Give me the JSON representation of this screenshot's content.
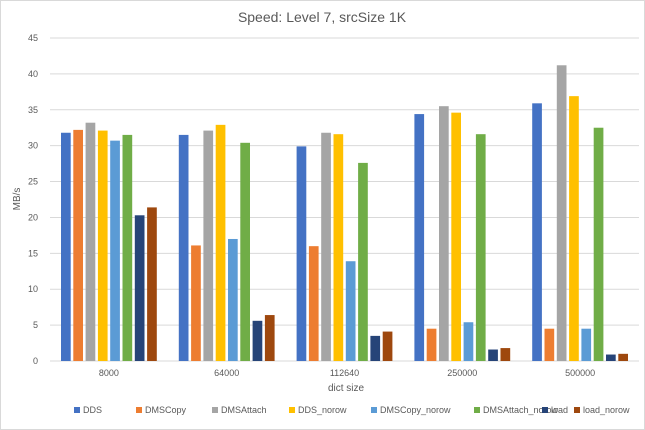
{
  "chart_data": {
    "type": "bar",
    "title": "Speed: Level 7, srcSize 1K",
    "xlabel": "dict size",
    "ylabel": "MB/s",
    "categories": [
      "8000",
      "64000",
      "112640",
      "250000",
      "500000"
    ],
    "ylim": [
      0,
      45
    ],
    "yticks": [
      0,
      5,
      10,
      15,
      20,
      25,
      30,
      35,
      40,
      45
    ],
    "grid": true,
    "legend_position": "bottom",
    "series": [
      {
        "name": "DDS",
        "color": "#4472C4",
        "values": [
          31.8,
          31.5,
          29.9,
          34.4,
          35.9
        ]
      },
      {
        "name": "DMSCopy",
        "color": "#ED7D31",
        "values": [
          32.2,
          16.1,
          16.0,
          4.5,
          4.5
        ]
      },
      {
        "name": "DMSAttach",
        "color": "#A5A5A5",
        "values": [
          33.2,
          32.1,
          31.8,
          35.5,
          41.2
        ]
      },
      {
        "name": "DDS_norow",
        "color": "#FFC000",
        "values": [
          32.1,
          32.9,
          31.6,
          34.6,
          36.9
        ]
      },
      {
        "name": "DMSCopy_norow",
        "color": "#5B9BD5",
        "values": [
          30.7,
          17.0,
          13.9,
          5.4,
          4.5
        ]
      },
      {
        "name": "DMSAttach_norow",
        "color": "#70AD47",
        "values": [
          31.5,
          30.4,
          27.6,
          31.6,
          32.5
        ]
      },
      {
        "name": "load",
        "color": "#264478",
        "values": [
          20.3,
          5.6,
          3.5,
          1.6,
          0.9
        ]
      },
      {
        "name": "load_norow",
        "color": "#9E480E",
        "values": [
          21.4,
          6.4,
          4.1,
          1.8,
          1.0
        ]
      }
    ]
  }
}
